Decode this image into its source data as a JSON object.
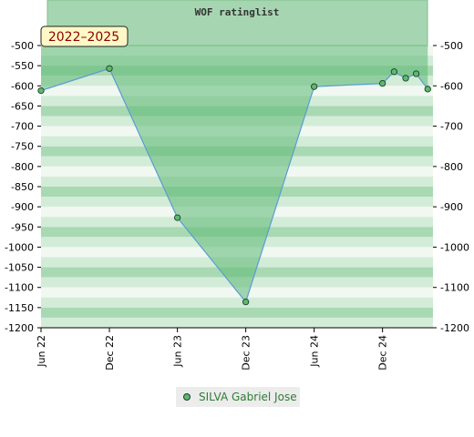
{
  "chart_data": {
    "type": "area",
    "title": "WOF ratinglist",
    "period_label": "2022–2025",
    "xlabel": "",
    "ylabel": "",
    "ylim": [
      -1200,
      -500
    ],
    "y_ticks": [
      -500,
      -550,
      -600,
      -650,
      -700,
      -750,
      -800,
      -850,
      -900,
      -950,
      -1000,
      -1050,
      -1100,
      -1150,
      -1200
    ],
    "y_ticks_right": [
      -500,
      -600,
      -700,
      -800,
      -900,
      -1000,
      -1100,
      -1200
    ],
    "x_range": [
      "2022-06-01",
      "2025-04-15"
    ],
    "x_ticks": [
      {
        "label": "Jun 22",
        "date": "2022-06-01"
      },
      {
        "label": "Dec 22",
        "date": "2022-12-01"
      },
      {
        "label": "Jun 23",
        "date": "2023-06-01"
      },
      {
        "label": "Dec 23",
        "date": "2023-12-01"
      },
      {
        "label": "Jun 24",
        "date": "2024-06-01"
      },
      {
        "label": "Dec 24",
        "date": "2024-12-01"
      }
    ],
    "series": [
      {
        "name": "SILVA Gabriel Jose",
        "color": "#5db872",
        "points": [
          {
            "x": "2022-06-01",
            "y": -612
          },
          {
            "x": "2022-12-01",
            "y": -557
          },
          {
            "x": "2023-06-01",
            "y": -927
          },
          {
            "x": "2023-12-01",
            "y": -1136
          },
          {
            "x": "2024-06-01",
            "y": -602
          },
          {
            "x": "2024-12-01",
            "y": -594
          },
          {
            "x": "2025-01-01",
            "y": -565
          },
          {
            "x": "2025-02-01",
            "y": -581
          },
          {
            "x": "2025-03-01",
            "y": -570
          },
          {
            "x": "2025-04-01",
            "y": -608
          }
        ]
      }
    ],
    "grid": true,
    "legend_position": "bottom"
  },
  "colors": {
    "fill": "#5db872",
    "line": "#5b9bd5",
    "marker": "#5db872",
    "marker_stroke": "#1f3d26",
    "band_light": "#f0f8f1",
    "band_mid": "#d3ecd8",
    "band_dark": "#a9d9b3",
    "title_bg": "#a6d6b1"
  }
}
